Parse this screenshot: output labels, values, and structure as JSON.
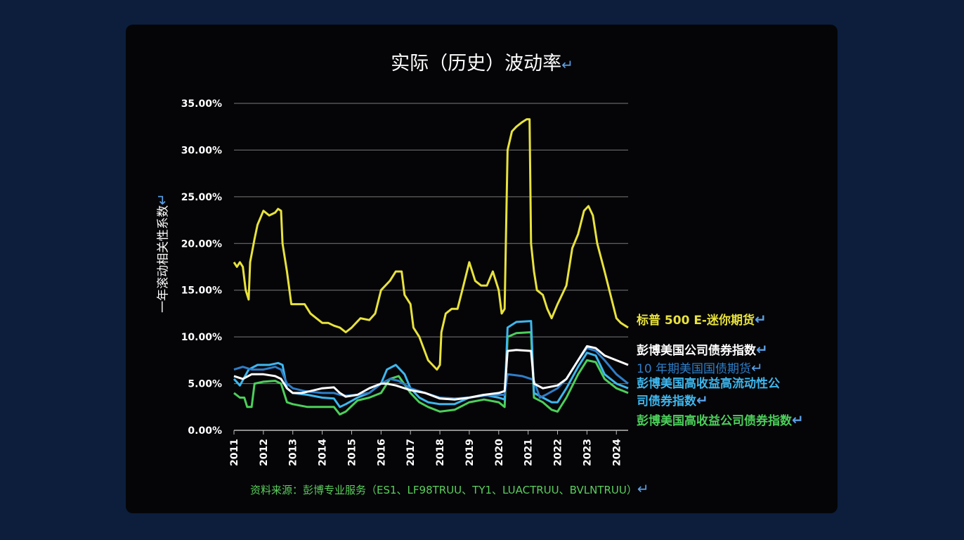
{
  "chart_data": {
    "type": "line",
    "title": "实际（历史）波动率",
    "ylabel": "一年滚动相关性系数",
    "xlabel": "",
    "ylim": [
      0,
      35
    ],
    "xlim": [
      2011,
      2024.4
    ],
    "y_ticks": [
      "35.00%",
      "30.00%",
      "25.00%",
      "20.00%",
      "15.00%",
      "10.00%",
      "5.00%",
      "0.00%"
    ],
    "y_tick_values": [
      35,
      30,
      25,
      20,
      15,
      10,
      5,
      0
    ],
    "x_ticks": [
      "2011",
      "2012",
      "2013",
      "2014",
      "2015",
      "2016",
      "2017",
      "2018",
      "2019",
      "2020",
      "2021",
      "2022",
      "2023",
      "2024"
    ],
    "grid": true,
    "legend_position": "right",
    "series": [
      {
        "name": "标普 500 E-迷你期货",
        "color": "#e8e23c",
        "points": [
          [
            2011,
            18
          ],
          [
            2011.1,
            17.5
          ],
          [
            2011.2,
            18
          ],
          [
            2011.3,
            17.5
          ],
          [
            2011.4,
            15
          ],
          [
            2011.5,
            14
          ],
          [
            2011.55,
            18
          ],
          [
            2011.7,
            20.5
          ],
          [
            2011.8,
            22
          ],
          [
            2012,
            23.5
          ],
          [
            2012.2,
            23
          ],
          [
            2012.4,
            23.3
          ],
          [
            2012.5,
            23.7
          ],
          [
            2012.6,
            23.5
          ],
          [
            2012.65,
            20
          ],
          [
            2012.8,
            17
          ],
          [
            2012.95,
            13.5
          ],
          [
            2013.1,
            13.5
          ],
          [
            2013.4,
            13.5
          ],
          [
            2013.6,
            12.5
          ],
          [
            2013.8,
            12
          ],
          [
            2014,
            11.5
          ],
          [
            2014.2,
            11.5
          ],
          [
            2014.4,
            11.2
          ],
          [
            2014.6,
            11
          ],
          [
            2014.8,
            10.5
          ],
          [
            2015,
            11
          ],
          [
            2015.3,
            12
          ],
          [
            2015.6,
            11.8
          ],
          [
            2015.8,
            12.5
          ],
          [
            2016,
            15
          ],
          [
            2016.3,
            16
          ],
          [
            2016.5,
            17
          ],
          [
            2016.7,
            17
          ],
          [
            2016.8,
            14.5
          ],
          [
            2017,
            13.5
          ],
          [
            2017.1,
            11
          ],
          [
            2017.3,
            10
          ],
          [
            2017.6,
            7.5
          ],
          [
            2017.9,
            6.5
          ],
          [
            2018,
            7
          ],
          [
            2018.05,
            10.5
          ],
          [
            2018.2,
            12.5
          ],
          [
            2018.4,
            13
          ],
          [
            2018.6,
            13
          ],
          [
            2018.8,
            15.5
          ],
          [
            2019,
            18
          ],
          [
            2019.2,
            16
          ],
          [
            2019.4,
            15.5
          ],
          [
            2019.6,
            15.5
          ],
          [
            2019.8,
            17
          ],
          [
            2020,
            15
          ],
          [
            2020.1,
            12.5
          ],
          [
            2020.2,
            13
          ],
          [
            2020.3,
            30
          ],
          [
            2020.45,
            32
          ],
          [
            2020.6,
            32.5
          ],
          [
            2020.8,
            33
          ],
          [
            2020.95,
            33.3
          ],
          [
            2021.05,
            33.3
          ],
          [
            2021.1,
            20
          ],
          [
            2021.2,
            17
          ],
          [
            2021.3,
            15
          ],
          [
            2021.5,
            14.5
          ],
          [
            2021.65,
            13
          ],
          [
            2021.8,
            12
          ],
          [
            2022,
            13.5
          ],
          [
            2022.3,
            15.5
          ],
          [
            2022.5,
            19.5
          ],
          [
            2022.7,
            21
          ],
          [
            2022.9,
            23.5
          ],
          [
            2023.05,
            24
          ],
          [
            2023.2,
            23
          ],
          [
            2023.35,
            20
          ],
          [
            2023.6,
            17
          ],
          [
            2023.8,
            14.5
          ],
          [
            2024,
            12
          ],
          [
            2024.15,
            11.5
          ],
          [
            2024.4,
            11
          ]
        ]
      },
      {
        "name": "彭博美国公司债券指数",
        "color": "#ffffff",
        "points": [
          [
            2011,
            5.8
          ],
          [
            2011.3,
            5.5
          ],
          [
            2011.6,
            6
          ],
          [
            2012,
            6
          ],
          [
            2012.4,
            5.8
          ],
          [
            2012.6,
            5.5
          ],
          [
            2012.8,
            4.5
          ],
          [
            2013,
            4
          ],
          [
            2013.3,
            4
          ],
          [
            2013.6,
            4.2
          ],
          [
            2014,
            4.5
          ],
          [
            2014.4,
            4.6
          ],
          [
            2014.6,
            4
          ],
          [
            2014.8,
            3.6
          ],
          [
            2015.2,
            3.8
          ],
          [
            2015.6,
            4.5
          ],
          [
            2016,
            5
          ],
          [
            2016.2,
            5
          ],
          [
            2016.5,
            4.8
          ],
          [
            2017,
            4.3
          ],
          [
            2017.5,
            4
          ],
          [
            2018,
            3.4
          ],
          [
            2018.5,
            3.3
          ],
          [
            2019,
            3.5
          ],
          [
            2019.5,
            3.8
          ],
          [
            2020,
            4
          ],
          [
            2020.2,
            4.2
          ],
          [
            2020.3,
            8.5
          ],
          [
            2020.6,
            8.6
          ],
          [
            2021.1,
            8.5
          ],
          [
            2021.2,
            5
          ],
          [
            2021.5,
            4.5
          ],
          [
            2022,
            4.8
          ],
          [
            2022.3,
            5.5
          ],
          [
            2022.7,
            7.5
          ],
          [
            2023,
            9
          ],
          [
            2023.3,
            8.8
          ],
          [
            2023.6,
            8
          ],
          [
            2024,
            7.5
          ],
          [
            2024.4,
            7
          ]
        ]
      },
      {
        "name": "10 年期美国国债期货",
        "color": "#2f7ec7",
        "points": [
          [
            2011,
            6.5
          ],
          [
            2011.3,
            6.8
          ],
          [
            2011.6,
            6.5
          ],
          [
            2012,
            6.5
          ],
          [
            2012.4,
            6.8
          ],
          [
            2012.6,
            6.5
          ],
          [
            2012.8,
            5
          ],
          [
            2013,
            4.5
          ],
          [
            2013.4,
            4.2
          ],
          [
            2014,
            4
          ],
          [
            2014.4,
            4
          ],
          [
            2014.6,
            3.8
          ],
          [
            2014.8,
            3.7
          ],
          [
            2015.2,
            3.8
          ],
          [
            2015.6,
            4
          ],
          [
            2016,
            5
          ],
          [
            2016.3,
            5.5
          ],
          [
            2016.6,
            5.3
          ],
          [
            2017,
            4.5
          ],
          [
            2017.5,
            4
          ],
          [
            2018,
            3.5
          ],
          [
            2018.5,
            3.4
          ],
          [
            2019,
            3.5
          ],
          [
            2019.5,
            3.7
          ],
          [
            2020,
            3.8
          ],
          [
            2020.2,
            3.8
          ],
          [
            2020.3,
            6
          ],
          [
            2020.8,
            5.8
          ],
          [
            2021.1,
            5.5
          ],
          [
            2021.2,
            5.3
          ],
          [
            2021.4,
            3.5
          ],
          [
            2021.6,
            3.8
          ],
          [
            2022,
            4.5
          ],
          [
            2022.3,
            5.5
          ],
          [
            2022.7,
            7.5
          ],
          [
            2023,
            8.8
          ],
          [
            2023.3,
            8.5
          ],
          [
            2023.6,
            7.5
          ],
          [
            2024,
            6
          ],
          [
            2024.4,
            5
          ]
        ]
      },
      {
        "name": "彭博美国高收益高流动性公司债券指数",
        "color": "#3eb7ee",
        "points": [
          [
            2011,
            5.5
          ],
          [
            2011.2,
            4.8
          ],
          [
            2011.5,
            6.5
          ],
          [
            2011.8,
            7
          ],
          [
            2012.2,
            7
          ],
          [
            2012.5,
            7.2
          ],
          [
            2012.65,
            7
          ],
          [
            2012.8,
            4.5
          ],
          [
            2013,
            4
          ],
          [
            2013.5,
            3.8
          ],
          [
            2014,
            3.5
          ],
          [
            2014.4,
            3.4
          ],
          [
            2014.6,
            2.5
          ],
          [
            2014.8,
            2.8
          ],
          [
            2015.2,
            3.5
          ],
          [
            2015.6,
            4
          ],
          [
            2016,
            5
          ],
          [
            2016.2,
            6.5
          ],
          [
            2016.5,
            7
          ],
          [
            2016.8,
            6
          ],
          [
            2017,
            4.5
          ],
          [
            2017.3,
            3.5
          ],
          [
            2017.6,
            3
          ],
          [
            2018,
            2.8
          ],
          [
            2018.5,
            2.8
          ],
          [
            2019,
            3.5
          ],
          [
            2019.5,
            3.8
          ],
          [
            2020,
            3.5
          ],
          [
            2020.2,
            3.3
          ],
          [
            2020.3,
            11
          ],
          [
            2020.6,
            11.6
          ],
          [
            2021.1,
            11.7
          ],
          [
            2021.2,
            4
          ],
          [
            2021.5,
            3.5
          ],
          [
            2021.8,
            3
          ],
          [
            2022,
            3
          ],
          [
            2022.3,
            4.5
          ],
          [
            2022.7,
            6.8
          ],
          [
            2023,
            8.3
          ],
          [
            2023.3,
            8
          ],
          [
            2023.6,
            6
          ],
          [
            2024,
            5
          ],
          [
            2024.4,
            4.5
          ]
        ]
      },
      {
        "name": "彭博美国高收益公司债券指数",
        "color": "#4ccf5a",
        "points": [
          [
            2011,
            4
          ],
          [
            2011.2,
            3.5
          ],
          [
            2011.35,
            3.5
          ],
          [
            2011.45,
            2.5
          ],
          [
            2011.6,
            2.5
          ],
          [
            2011.7,
            5
          ],
          [
            2012,
            5.2
          ],
          [
            2012.4,
            5.3
          ],
          [
            2012.6,
            5
          ],
          [
            2012.8,
            3
          ],
          [
            2013,
            2.8
          ],
          [
            2013.5,
            2.5
          ],
          [
            2014,
            2.5
          ],
          [
            2014.4,
            2.5
          ],
          [
            2014.6,
            1.7
          ],
          [
            2014.8,
            2
          ],
          [
            2015.2,
            3.2
          ],
          [
            2015.6,
            3.5
          ],
          [
            2016,
            4
          ],
          [
            2016.3,
            5.5
          ],
          [
            2016.6,
            5.8
          ],
          [
            2017,
            4
          ],
          [
            2017.3,
            3
          ],
          [
            2017.6,
            2.5
          ],
          [
            2018,
            2
          ],
          [
            2018.5,
            2.2
          ],
          [
            2019,
            3
          ],
          [
            2019.5,
            3.3
          ],
          [
            2020,
            3
          ],
          [
            2020.2,
            2.5
          ],
          [
            2020.3,
            10
          ],
          [
            2020.6,
            10.4
          ],
          [
            2021.1,
            10.5
          ],
          [
            2021.2,
            3.5
          ],
          [
            2021.5,
            3
          ],
          [
            2021.8,
            2.2
          ],
          [
            2022,
            2
          ],
          [
            2022.3,
            3.5
          ],
          [
            2022.7,
            6
          ],
          [
            2023,
            7.5
          ],
          [
            2023.3,
            7.3
          ],
          [
            2023.6,
            5.5
          ],
          [
            2024,
            4.5
          ],
          [
            2024.4,
            4
          ]
        ]
      }
    ]
  },
  "legend": [
    {
      "text": "标普 500 E-迷你期货",
      "color": "#e8e23c"
    },
    {
      "text": "彭博美国公司债券指数",
      "color": "#ffffff"
    },
    {
      "text": "10 年期美国国债期货",
      "color": "#2f7ec7"
    },
    {
      "text": "彭博美国高收益高流动性公",
      "text2": "司债券指数",
      "color": "#3eb7ee"
    },
    {
      "text": "彭博美国高收益公司债券指数",
      "color": "#4ccf5a"
    }
  ],
  "source": "资料来源：彭博专业服务（ES1、LF98TRUU、TY1、LUACTRUU、BVLNTRUU）",
  "return_mark": "↵"
}
